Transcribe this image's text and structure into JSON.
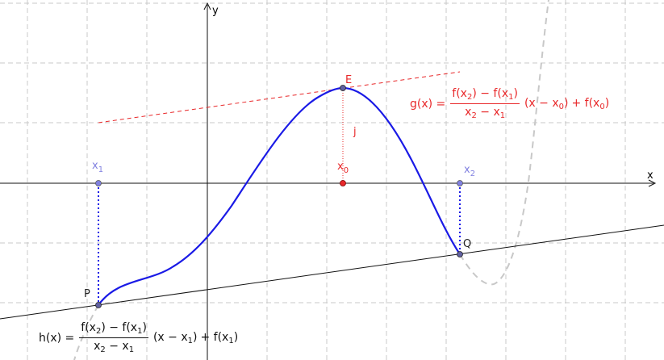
{
  "axes": {
    "x_label": "x",
    "y_label": "y"
  },
  "points": {
    "E": "E",
    "P": "P",
    "Q": "Q",
    "x1": {
      "base": "x",
      "sub": "1"
    },
    "x2": {
      "base": "x",
      "sub": "2"
    },
    "x0": {
      "base": "x",
      "sub": "0"
    }
  },
  "segment_j": "j",
  "formula_g": {
    "lhs": "g(x) =",
    "num": [
      "f(x",
      "2",
      ") − f(x",
      "1",
      ")"
    ],
    "den": [
      "x",
      "2",
      " − x",
      "1"
    ],
    "t1": [
      "(x − x",
      "0",
      ")"
    ],
    "t2": [
      "+ f(x",
      "0",
      ")"
    ]
  },
  "formula_h": {
    "lhs": "h(x) =",
    "num": [
      "f(x",
      "2",
      ") − f(x",
      "1",
      ")"
    ],
    "den": [
      "x",
      "2",
      " − x",
      "1"
    ],
    "t1": [
      "(x − x",
      "1",
      ")"
    ],
    "t2": [
      "+ f(x",
      "1",
      ")"
    ]
  },
  "colors": {
    "curve": "#1a1ae6",
    "curve_extension": "#c8c8c8",
    "secant_and_tangent_g": "#e8282a",
    "secant_h": "#111111",
    "point_x1_x2": "#8080e0",
    "point_x0": "#e8282a",
    "grid": "#c8c8c8"
  }
}
